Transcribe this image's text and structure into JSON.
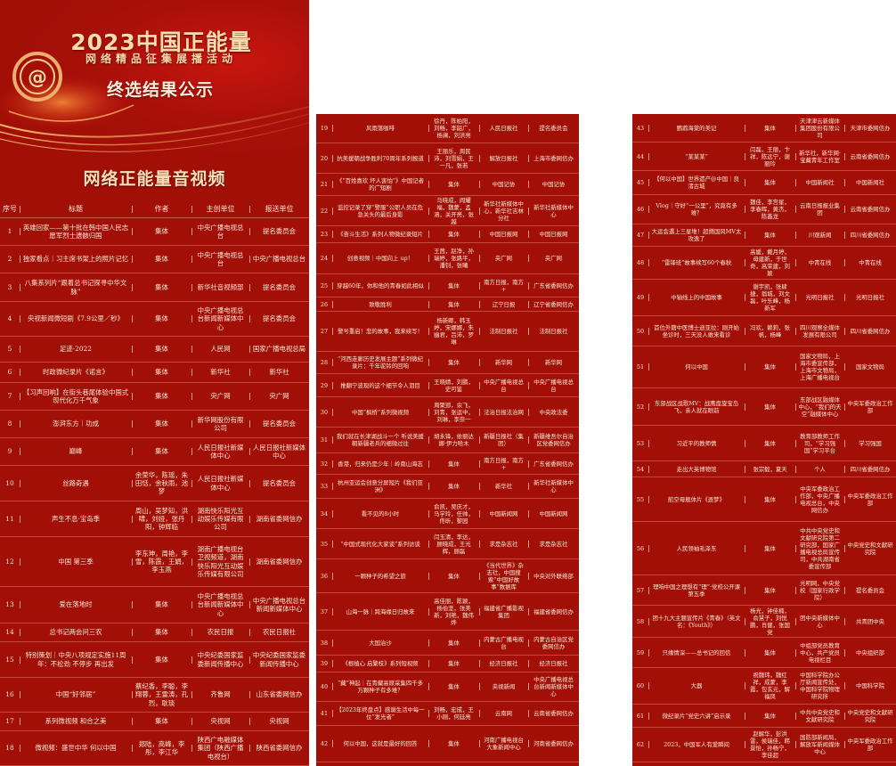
{
  "banner": {
    "title": "2023中国正能量",
    "subtitle": "网络精品征集展播活动",
    "result_label": "终选结果公示",
    "category": "网络正能量音视频",
    "logo_icon": "at-sign-icon"
  },
  "colors": {
    "background": "#a20f07",
    "text": "#f6e8d6",
    "gold": "#f6dcae"
  },
  "columns": [
    "序号",
    "标题",
    "作者",
    "主创单位",
    "报送单位"
  ],
  "rows": [
    [
      "1",
      "英雄回家——第十批在韩中国人民志愿军烈士遗骸归国",
      "集体",
      "中央广播电视总台",
      "提名委员会"
    ],
    [
      "2",
      "独家看点｜习主席书架上的照片记忆",
      "集体",
      "中央广播电视总台",
      "中央广播电视总台"
    ],
    [
      "3",
      "八集系列片“跟着总书记探寻中华文脉”",
      "集体",
      "新华社音视频部",
      "提名委员会"
    ],
    [
      "4",
      "央视新闻微短剧《7.9公里／秒》",
      "集体",
      "中央广播电视总台新闻新媒体中心",
      "提名委员会"
    ],
    [
      "5",
      "足迹·2022",
      "集体",
      "人民网",
      "国家广播电视总局"
    ],
    [
      "6",
      "时政微纪录片《诺言》",
      "集体",
      "新华社",
      "新华社"
    ],
    [
      "7",
      "【习声回响】在街头巷尾体验中国式现代化万千气象",
      "集体",
      "央广网",
      "央广网"
    ],
    [
      "8",
      "澎湃东方｜功成",
      "集体",
      "新华网股份有限公司",
      "提名委员会"
    ],
    [
      "9",
      "巅峰",
      "集体",
      "人民日报社新媒体中心",
      "人民日报社新媒体中心"
    ],
    [
      "10",
      "丝路奇遇",
      "余荣华，陈瑶，朱田恬，余秋雨，池梦",
      "人民日报社新媒体中心",
      "提名委员会"
    ],
    [
      "11",
      "声生不息·宝岛季",
      "周山，吴梦知，洪啸，刘娅，张丹阳，钟辉临",
      "湖南快乐阳光互动娱乐传媒有限公司",
      "湖南省委网信办"
    ],
    [
      "12",
      "中国 第三季",
      "李东珅，周艳，李雪，陈霞，王娟，李玉燕",
      "湖南广播电视台卫视频道，湖南快乐阳光互动娱乐传媒有限公司",
      "湖南省委网信办"
    ],
    [
      "13",
      "爱在落地时",
      "集体",
      "中央广播电视总台新闻新媒体中心",
      "中央广播电视总台新闻新媒体中心"
    ],
    [
      "14",
      "总书记两会问三农",
      "集体",
      "农民日报",
      "农民日报社"
    ],
    [
      "15",
      "特别策划｜中央八项规定实施11周年：不松劲 不停步 再出发",
      "集体",
      "中央纪委国家监委新闻传播中心",
      "中央纪委国家监委新闻传播中心"
    ],
    [
      "16",
      "中国“好邻居”",
      "蔡纪香，李聪，李翔蓉，王雷涛，孔烈，耿琰",
      "齐鲁网",
      "山东省委网信办"
    ],
    [
      "17",
      "系列微视频 和合之美",
      "集体",
      "央视网",
      "央视网"
    ],
    [
      "18",
      "微视频：盛世中华 何以中国",
      "郑陆，高峰，李彤，李江华",
      "陕西广电融媒体集团（陕西广播电视台）",
      "陕西省委网信办"
    ],
    [
      "19",
      "风雨落咖啡",
      "徐丹，陈柏阳，刘畅，李韶广，杨澜，刘洪亮",
      "人民日报社",
      "提名委员会"
    ],
    [
      "20",
      "抗美援朝战争胜利70周年系列报道",
      "王丽乐，周民沛，刘雪娟，王一凡，张若",
      "解放日报社",
      "上海市委网信办"
    ],
    [
      "21",
      "《“百姓喜欢 坏人害怕”》中国记者的广短剧",
      "集体",
      "中国记协",
      "中国记协"
    ],
    [
      "22",
      "监控记录了穿“警服”公职人员在危急关头的最后身影",
      "马晓成，阎耀福，魏蒙，孟涵，关开亮，张越",
      "新华社新媒体中心，新华社吉林分社",
      "新华社新媒体中心"
    ],
    [
      "23",
      "《奋斗生活》系列人物微纪录短片",
      "集体",
      "中国日报网",
      "中国日报网"
    ],
    [
      "24",
      "创意视频｜中国向上 up！",
      "王茜，赵净，孙瑞婷，张路平，潘钊，张曦",
      "央广网",
      "央广网"
    ],
    [
      "25",
      "穿越60年，你和他的青春如此相似",
      "集体",
      "南方日报，南方+",
      "广东省委网信办"
    ],
    [
      "26",
      "致敬胜利",
      "集体",
      "辽宁日报",
      "辽宁省委网信办"
    ],
    [
      "27",
      "警号重启！悲的故事，我来续写！",
      "杨新卿，韩玉婷，宋娜娜，朱幽君，吕沛，罗琳",
      "法制日报社",
      "法制日报社"
    ],
    [
      "28",
      "“河西走廊历史发展主题”系列微纪录片：千年驼铃的回响",
      "集体",
      "新华网",
      "新华网"
    ],
    [
      "29",
      "推翻宁波现的这个细节令人泪目",
      "王晓婧，刘鹏，史可鉴",
      "中央广播电视总台",
      "中央广播电视总台"
    ],
    [
      "30",
      "中国“枫桥”系列微视频",
      "周聚郢，余飞，刘青，张运中，刘琳，李奈一",
      "法治日报法治网",
      "中央政法委"
    ],
    [
      "31",
      "我们就在长津湖战斗一个 听说美援朝新疆老兵的细微过往",
      "胡永锋，依丽达娜·伊力哈木",
      "新疆日报社（集团）",
      "新疆维吾尔自治区党委网信办"
    ],
    [
      "32",
      "香港，归来仍是少年｜岭南山海志",
      "集体",
      "南方日报，南方+",
      "广东省委网信办"
    ],
    [
      "33",
      "杭州亚运会创意分屏短片《我们亚洲》",
      "集体",
      "新华社",
      "新华社新媒体中心"
    ],
    [
      "34",
      "看不见的8小时",
      "俞凯，吴庆才，马学玲，任帅，佟昕，黎园",
      "中国新闻网",
      "中国新闻网"
    ],
    [
      "35",
      "“中国式现代化大家谈”系列访谈",
      "闫玉清，李达，顾晓成，王光辉，顾磊",
      "求是杂志社",
      "求是杂志社"
    ],
    [
      "36",
      "一颗种子的希望之旅",
      "集体",
      "《当代世界》杂志社，中国搜索“中国好故事”数据库",
      "中央对外联络部"
    ],
    [
      "37",
      "山海一脉｜跨海缘日归故来",
      "高佳丽，陈颖，杨伯坚，张美新，刘艳，魏伟烨",
      "福建省广播影视集团",
      "福建省委网信办"
    ],
    [
      "38",
      "大国治沙",
      "集体",
      "内蒙古广播电视台",
      "内蒙古自治区党委网信办"
    ],
    [
      "39",
      "《根植心 启繁枝》系列短视频",
      "集体",
      "经济日报社",
      "经济日报社"
    ],
    [
      "40",
      "“藏”神起｜在青藏高原采集四千多万颗种子有多难？",
      "集体",
      "央视新闻",
      "中央广播电视总台新闻新媒体中心"
    ],
    [
      "41",
      "【2023年终盘点】感谢生活中每一位“发光者”",
      "刘畅，宏成，王小刚，何廷亮",
      "云南网",
      "云南省委网信办"
    ],
    [
      "42",
      "何以中国，这就是最好的回答",
      "集体",
      "河南广播电视台大象新闻中心",
      "河南省委网信办"
    ],
    [
      "43",
      "鹦鹉海棠的美记",
      "集体",
      "天津津云新媒体集团股份有限公司",
      "天津市委网信办"
    ],
    [
      "44",
      "“某某某”",
      "闫磊，王丽，卞祥，陈远宁，谢丽玲",
      "新华社，新华网·宝藏青年工作室",
      "云南省委网信办"
    ],
    [
      "45",
      "【何以中国】世界遗产@中国｜良渚古城",
      "集体",
      "中国新闻社",
      "中国新闻社"
    ],
    [
      "46",
      "Vlog｜守好“一公里”，究竟有多难？",
      "魏佳，李宫星，李春晖，黄杰，陈鑫龙",
      "云南日报报业集团",
      "云南省委网信办"
    ],
    [
      "47",
      "大运会遇上三星堆！超燃国风MV太攻逸了",
      "集体",
      "川观新闻",
      "四川省委网信办"
    ],
    [
      "48",
      "“雷锋班”故事续写60个春秋",
      "高媛，戴月婷，母建新，于世奇，高荣建，刘颖",
      "中青在线",
      "中青在线"
    ],
    [
      "49",
      "中轴线上的中国故事",
      "谢宇凯，张肆捷，翁城，刘文磊，叶乐峰，杨新军",
      "光明日报社",
      "光明日报社"
    ],
    [
      "50",
      "首位外籍中医博士迪亚拉：刚开始坐诊时，三天没人敢来看诊",
      "冯欢，赖莉，张帆，杨峰",
      "四川观察全媒体发展有限公司",
      "四川省委网信办"
    ],
    [
      "51",
      "何以中国",
      "集体",
      "国家文物局，上海市委宣传部，上海市文物局，上海广播电视台",
      "国家文物局"
    ],
    [
      "52",
      "东部战区战歌MV：战鹰盘旋宝岛飞，亲人就在眼前",
      "集体",
      "东部战区融媒体中心，“我们的天空”融媒体中心",
      "中央军委政治工作部"
    ],
    [
      "53",
      "习近平的教师情",
      "集体",
      "教育部教师工作司，“学习强国”学习平台",
      "学习强国"
    ],
    [
      "54",
      "走出大英博物馆",
      "张宗毅，夏天",
      "个人",
      "四川省委网信办"
    ],
    [
      "55",
      "航空母舰体片《逐梦》",
      "集体",
      "中央军委政治工作部，中央广播电视总台，中央网信办",
      "中央军委政治工作部"
    ],
    [
      "56",
      "人民领袖毛泽东",
      "集体",
      "中共中央党史和文献研究院第二研究部，国家广播电视总局宣传司，中共湖南省委宣传部",
      "中央党史和文献研究院"
    ],
    [
      "57",
      "理响中国之理想有“理”·党校公开课第五季",
      "集体",
      "光明网，中央党校（国家行政学院）",
      "提名委员会"
    ],
    [
      "58",
      "团十九大主题宣传片《青春》（英文名：《Youth》）",
      "杨光，钟佳楠，俞慧子，刘悦鹏，肖健，张国党",
      "团中央新媒体中心",
      "共青团中央"
    ],
    [
      "59",
      "只缘情深——总书记的回信",
      "集体",
      "中组部党员教育中心，共产党员电视栏目",
      "中央组织部"
    ],
    [
      "60",
      "大器",
      "祝魏玮，魏红祥，成蒙，李霞，包玄元，解福凤",
      "中国科学院办公厅新闻宣传处，中国科学院物理研究所",
      "中国科学院"
    ],
    [
      "61",
      "微纪录片“党史六讲”启示录",
      "集体",
      "中共中央党史和文献研究院",
      "中央党史和文献研究院"
    ],
    [
      "62",
      "2023，中国军人有爱瞬间",
      "赵解华，彭洪雷，侯瑞佳，韩景怡，孙畅宁，李佳超",
      "国防部新闻局，解放军新闻媒体中心",
      "中央军委政治工作部"
    ]
  ]
}
